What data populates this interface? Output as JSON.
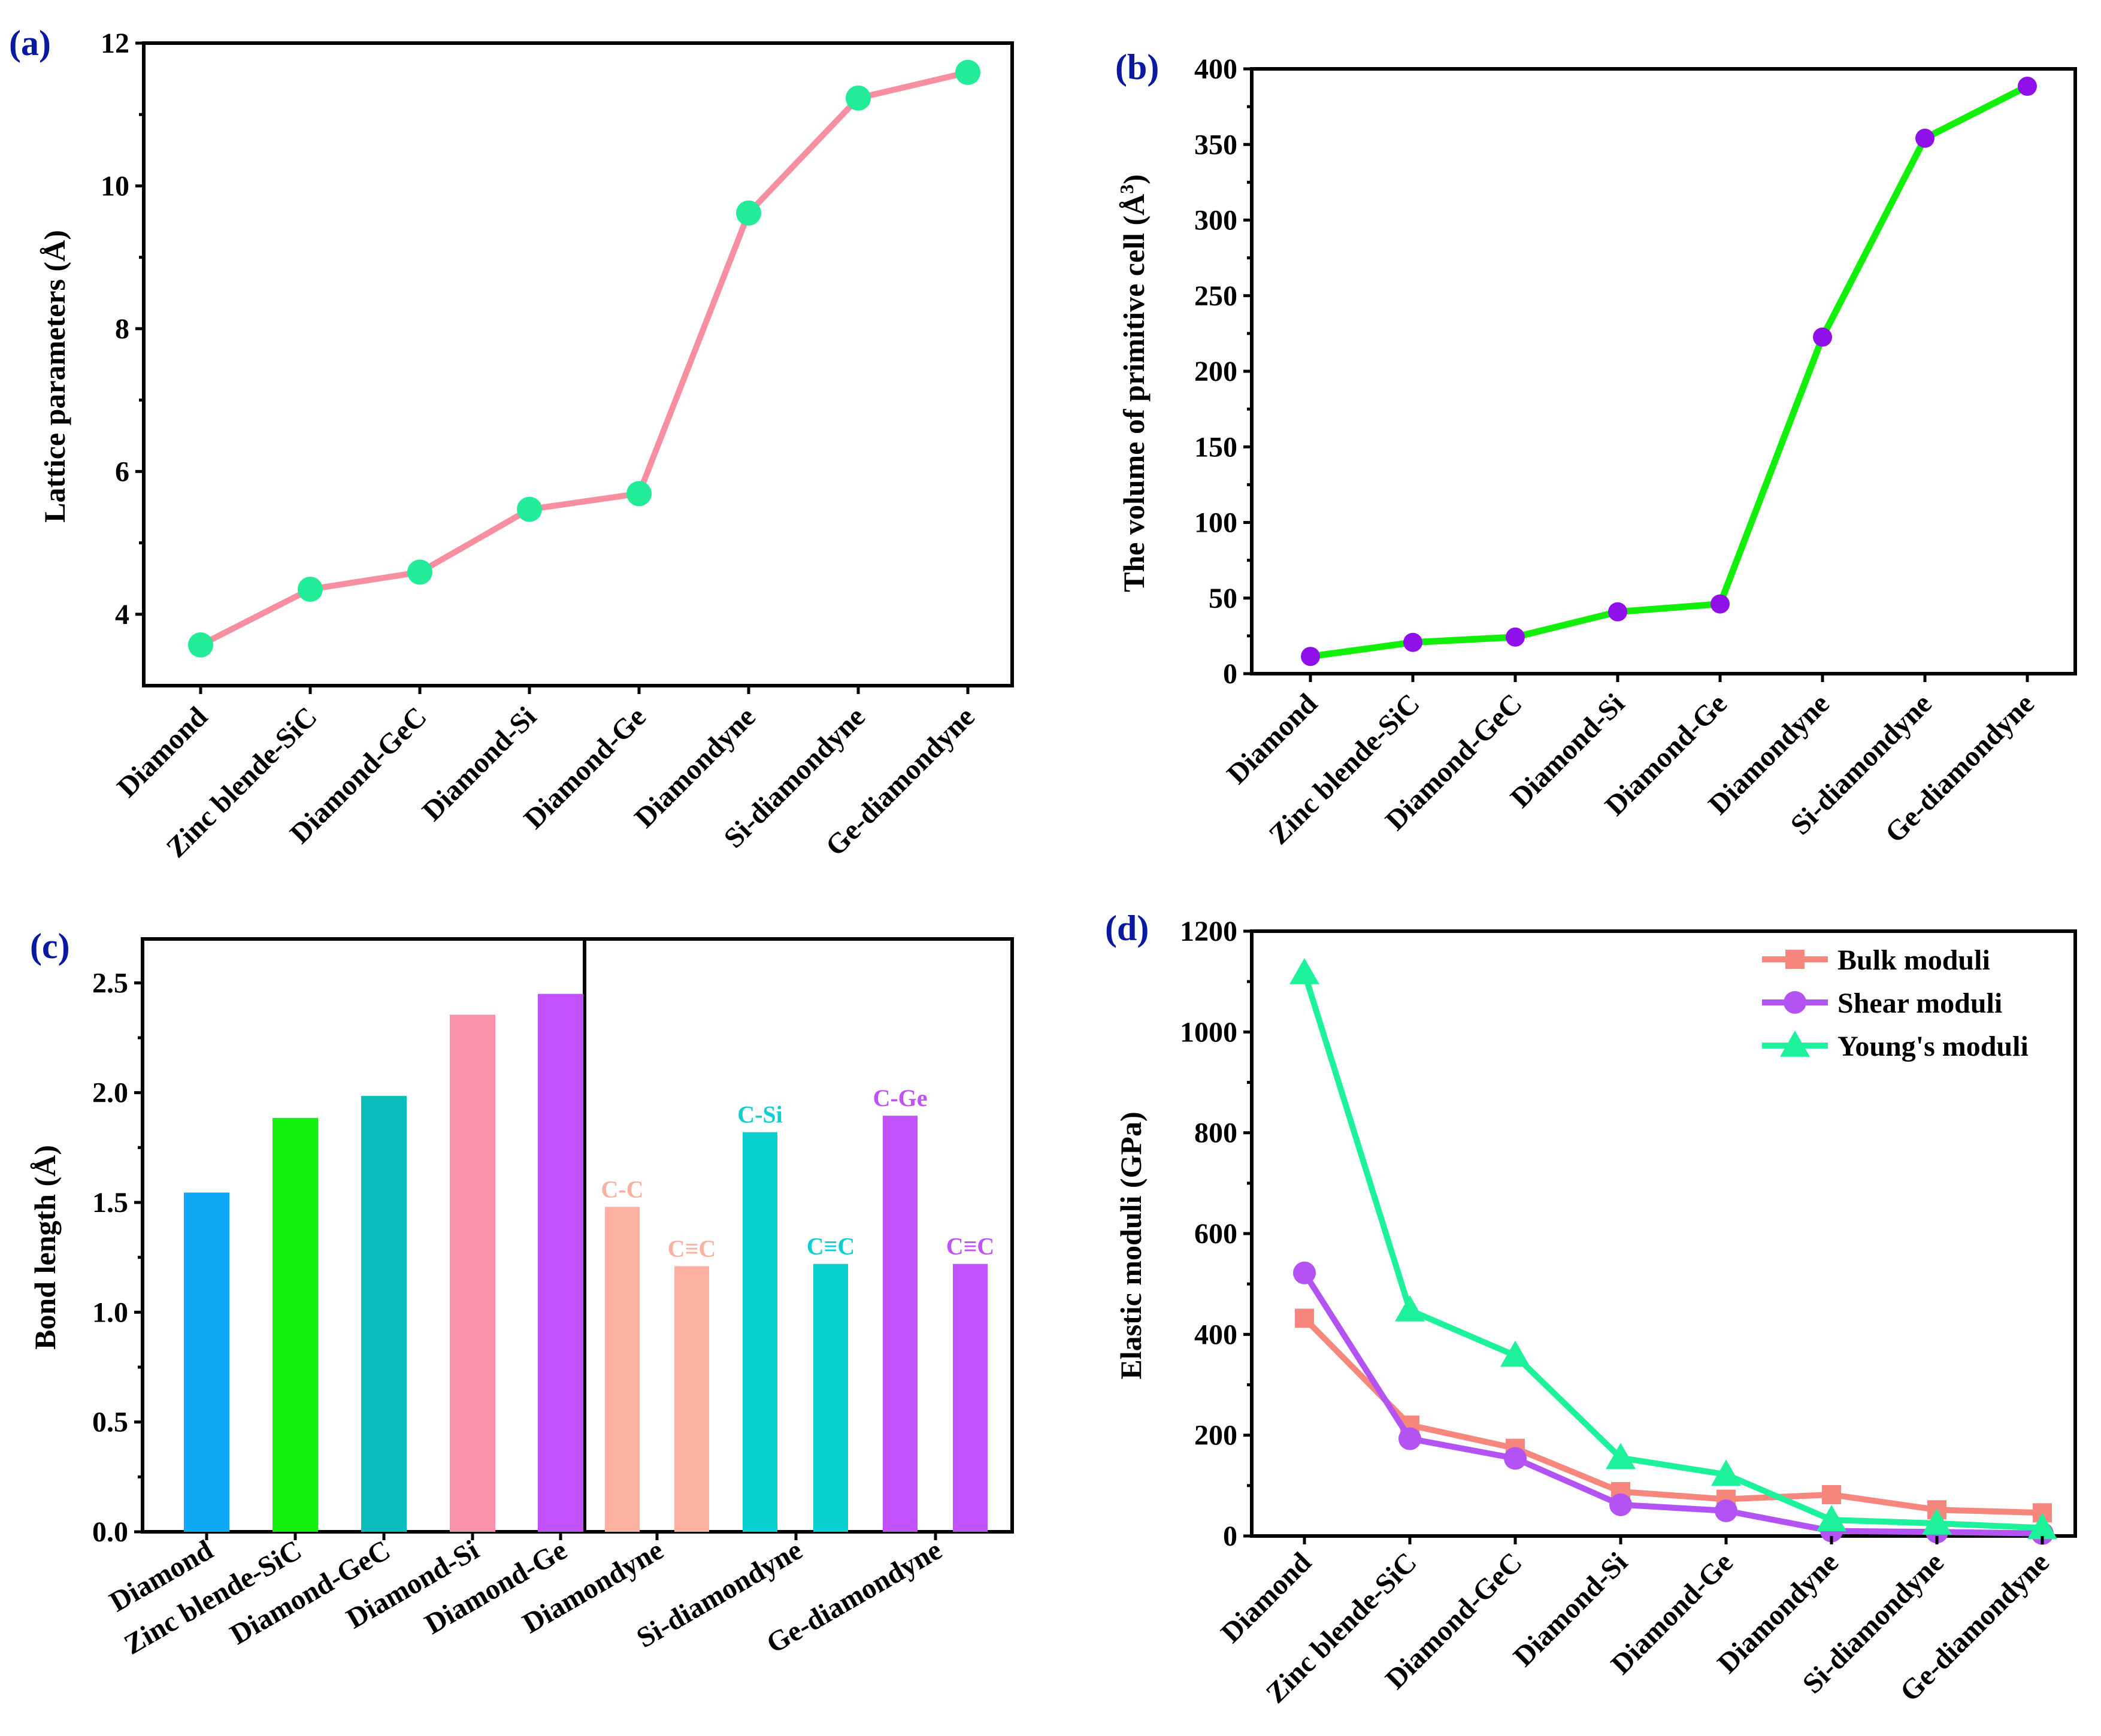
{
  "chart_data": [
    {
      "panel": "(a)",
      "type": "line",
      "categories": [
        "Diamond",
        "Zinc blende-SiC",
        "Diamond-GeC",
        "Diamond-Si",
        "Diamond-Ge",
        "Diamondyne",
        "Si-diamondyne",
        "Ge-diamondyne"
      ],
      "values": [
        3.57,
        4.35,
        4.59,
        5.47,
        5.69,
        9.62,
        11.23,
        11.59
      ],
      "xlabel": "",
      "ylabel": "Lattice parameters (Å)",
      "ylim": [
        3,
        12
      ],
      "yticks": [
        4,
        6,
        8,
        10,
        12
      ],
      "line_color": "#f78fa0",
      "marker_color": "#22ec97",
      "marker": "circle",
      "grid": false
    },
    {
      "panel": "(b)",
      "type": "line",
      "categories": [
        "Diamond",
        "Zinc blende-SiC",
        "Diamond-GeC",
        "Diamond-Si",
        "Diamond-Ge",
        "Diamondyne",
        "Si-diamondyne",
        "Ge-diamondyne"
      ],
      "values": [
        11.4,
        20.7,
        24.2,
        40.9,
        46.1,
        222.6,
        354.1,
        388.5
      ],
      "xlabel": "",
      "ylabel": "The volume of primitive cell (Å",
      "ylabel_sup": "3",
      "ylabel_end": ")",
      "ylim": [
        0,
        400
      ],
      "yticks": [
        0,
        50,
        100,
        150,
        200,
        250,
        300,
        350,
        400
      ],
      "line_color": "#12f00a",
      "marker_color": "#8f10e8",
      "marker": "circle",
      "grid": false
    },
    {
      "panel": "(c)",
      "type": "bar",
      "categories": [
        "Diamond",
        "Zinc blende-SiC",
        "Diamond-GeC",
        "Diamond-Si",
        "Diamond-Ge",
        "Diamondyne",
        "Si-diamondyne",
        "Ge-diamondyne"
      ],
      "left_bars": [
        {
          "value": 1.545,
          "color": "#0fa8f7"
        },
        {
          "value": 1.885,
          "color": "#14f00d"
        },
        {
          "value": 1.985,
          "color": "#09bdbd"
        },
        {
          "value": 2.355,
          "color": "#f991aa"
        },
        {
          "value": 2.45,
          "color": "#c151fa"
        }
      ],
      "right_bars": [
        {
          "value": 1.48,
          "color": "#fcb1a0",
          "label": "C-C"
        },
        {
          "value": 1.21,
          "color": "#fcb1a0",
          "label": "C≡C"
        },
        {
          "value": 1.82,
          "color": "#0bd0d0",
          "label": "C-Si"
        },
        {
          "value": 1.22,
          "color": "#0bd0d0",
          "label": "C≡C"
        },
        {
          "value": 1.895,
          "color": "#c151fa",
          "label": "C-Ge"
        },
        {
          "value": 1.22,
          "color": "#c151fa",
          "label": "C≡C"
        }
      ],
      "xlabel": "",
      "ylabel": "Bond length (Å)",
      "ylim": [
        0,
        2.7
      ],
      "yticks": [
        "0.0",
        "0.5",
        "1.0",
        "1.5",
        "2.0",
        "2.5"
      ],
      "grid": false
    },
    {
      "panel": "(d)",
      "type": "line",
      "categories": [
        "Diamond",
        "Zinc blende-SiC",
        "Diamond-GeC",
        "Diamond-Si",
        "Diamond-Ge",
        "Diamondyne",
        "Si-diamondyne",
        "Ge-diamondyne"
      ],
      "series": [
        {
          "name": "Bulk moduli",
          "values": [
            432,
            220,
            174,
            88,
            73,
            82,
            52,
            46
          ],
          "color": "#f7877d",
          "marker": "square"
        },
        {
          "name": "Shear moduli",
          "values": [
            522,
            193,
            154,
            62,
            50,
            10,
            8,
            5
          ],
          "color": "#b453f3",
          "marker": "circle"
        },
        {
          "name": "Young's moduli",
          "values": [
            1117,
            448,
            358,
            155,
            122,
            32,
            25,
            16
          ],
          "color": "#1df29a",
          "marker": "triangle"
        }
      ],
      "xlabel": "",
      "ylabel": "Elastic moduli (GPa)",
      "ylim": [
        0,
        1200
      ],
      "yticks": [
        0,
        200,
        400,
        600,
        800,
        1000,
        1200
      ],
      "legend": "top-right",
      "grid": false
    }
  ]
}
